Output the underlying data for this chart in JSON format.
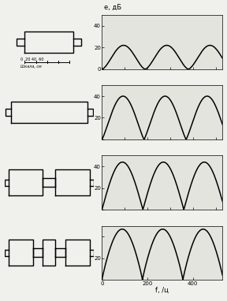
{
  "background_color": "#f0f0ec",
  "plot_bg": "#e4e4de",
  "ylabel_top": "e, дБ",
  "xlabel_last": "f, /ц",
  "x_ticks": [
    0,
    200,
    400
  ],
  "x_tick_labels": [
    "0",
    "200",
    "400"
  ],
  "ylim": [
    0,
    50
  ],
  "yticks": [
    0,
    20,
    40
  ],
  "xlim": [
    0,
    530
  ],
  "curves": [
    {
      "amp": 22,
      "period": 190,
      "power": 1.6
    },
    {
      "amp": 40,
      "period": 185,
      "power": 1.2
    },
    {
      "amp": 44,
      "period": 180,
      "power": 1.0
    },
    {
      "amp": 47,
      "period": 178,
      "power": 0.9
    }
  ]
}
